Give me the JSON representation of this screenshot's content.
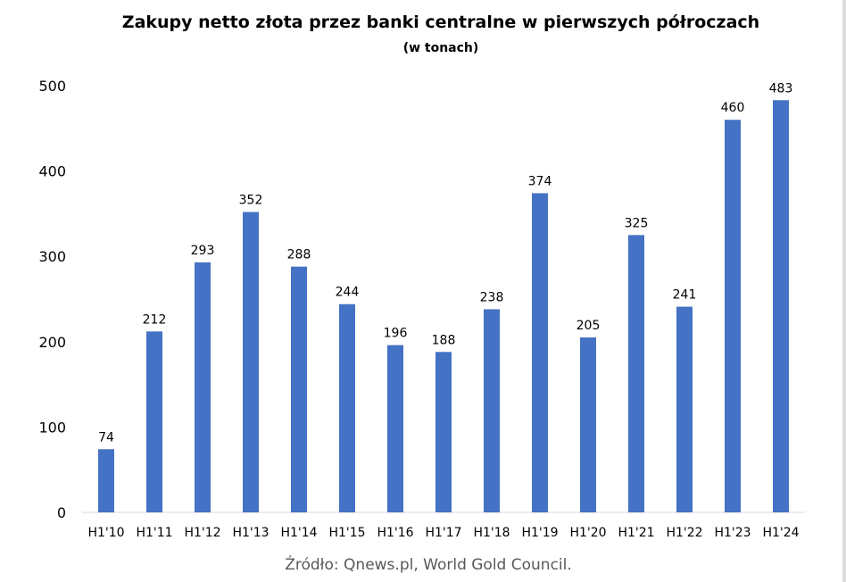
{
  "chart_data": {
    "type": "bar",
    "title": "Zakupy netto złota przez banki centralne w pierwszych półroczach",
    "subtitle": "(w tonach)",
    "categories": [
      "H1'10",
      "H1'11",
      "H1'12",
      "H1'13",
      "H1'14",
      "H1'15",
      "H1'16",
      "H1'17",
      "H1'18",
      "H1'19",
      "H1'20",
      "H1'21",
      "H1'22",
      "H1'23",
      "H1'24"
    ],
    "values": [
      74,
      212,
      293,
      352,
      288,
      244,
      196,
      188,
      238,
      374,
      205,
      325,
      241,
      460,
      483
    ],
    "data_labels": [
      "74",
      "212",
      "293",
      "352",
      "288",
      "244",
      "196",
      "188",
      "238",
      "374",
      "205",
      "325",
      "241",
      "460",
      "483"
    ],
    "ylim": [
      0,
      500
    ],
    "yticks": [
      "0",
      "100",
      "200",
      "300",
      "400",
      "500"
    ],
    "xlabel": "",
    "ylabel": "",
    "grid": false,
    "legend": "none",
    "bar_color": "#4472C4",
    "source": "Źródło: Qnews.pl, World Gold Council."
  }
}
